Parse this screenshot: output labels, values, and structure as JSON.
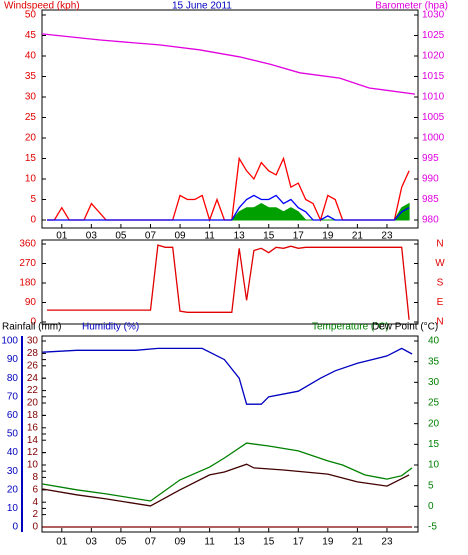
{
  "chart_data": [
    {
      "type": "line",
      "title": "15 June 2011",
      "title_color": "#0000c0",
      "axis_titles": [
        {
          "text": "Windspeed (kph)",
          "color": "#e00000"
        },
        {
          "text": "Barometer (hpa)",
          "color": "#e000e0"
        }
      ],
      "xlim": [
        -0.34,
        25.1
      ],
      "xticks": [
        {
          "value": 1,
          "label": "01"
        },
        {
          "value": 3,
          "label": "03"
        },
        {
          "value": 5,
          "label": "05"
        },
        {
          "value": 7,
          "label": "07"
        },
        {
          "value": 9,
          "label": "09"
        },
        {
          "value": 11,
          "label": "11"
        },
        {
          "value": 13,
          "label": "13"
        },
        {
          "value": 15,
          "label": "15"
        },
        {
          "value": 17,
          "label": "17"
        },
        {
          "value": 19,
          "label": "19"
        },
        {
          "value": 21,
          "label": "21"
        },
        {
          "value": 23,
          "label": "23"
        }
      ],
      "ylim": [
        0,
        50
      ],
      "yticks": [
        0,
        5,
        10,
        15,
        20,
        25,
        30,
        35,
        40,
        45,
        50
      ],
      "ycolor": "#e00000",
      "y2lim": [
        980,
        1030
      ],
      "y2ticks": [
        980,
        985,
        990,
        995,
        1000,
        1005,
        1010,
        1015,
        1020,
        1025,
        1030
      ],
      "y2color": "#e000e0",
      "series": [
        {
          "color": "#00a000",
          "style": "area",
          "axis": "y",
          "x": [
            0,
            0.5,
            1,
            1.5,
            2,
            2.5,
            3,
            3.5,
            4,
            4.5,
            5,
            5.5,
            6,
            6.5,
            7,
            7.5,
            8,
            8.5,
            9,
            9.5,
            10,
            10.5,
            11,
            11.5,
            12,
            12.5,
            13,
            13.5,
            14,
            14.5,
            15,
            15.5,
            16,
            16.5,
            17,
            17.5,
            18,
            18.5,
            19,
            19.5,
            20,
            20.5,
            21,
            21.5,
            22,
            22.5,
            23,
            23.5,
            24,
            24.5
          ],
          "values": [
            0,
            0,
            0,
            0,
            0,
            0,
            0,
            0,
            0,
            0,
            0,
            0,
            0,
            0,
            0,
            0,
            0,
            0,
            0,
            0,
            0,
            0,
            0,
            0,
            0,
            0,
            2,
            3,
            3,
            4,
            3,
            3,
            2,
            3,
            2,
            0,
            0,
            0,
            0,
            0,
            0,
            0,
            0,
            0,
            0,
            0,
            0,
            0,
            3,
            4
          ]
        },
        {
          "color": "#ff0000",
          "style": "line",
          "axis": "y",
          "x": [
            0,
            0.5,
            1,
            1.5,
            2,
            2.5,
            3,
            3.5,
            4,
            4.5,
            5,
            5.5,
            6,
            6.5,
            7,
            7.5,
            8,
            8.5,
            9,
            9.5,
            10,
            10.5,
            11,
            11.5,
            12,
            12.5,
            13,
            13.5,
            14,
            14.5,
            15,
            15.5,
            16,
            16.5,
            17,
            17.5,
            18,
            18.5,
            19,
            19.5,
            20,
            20.5,
            21,
            21.5,
            22,
            22.5,
            23,
            23.5,
            24,
            24.5
          ],
          "values": [
            0,
            0,
            3,
            0,
            0,
            0,
            4,
            2,
            0,
            0,
            0,
            0,
            0,
            0,
            0,
            0,
            0,
            0,
            6,
            5,
            5,
            6,
            0,
            5,
            0,
            0,
            15,
            12,
            10,
            14,
            12,
            11,
            15,
            8,
            9,
            5,
            4,
            0,
            6,
            5,
            0,
            0,
            0,
            0,
            0,
            0,
            0,
            0,
            8,
            12
          ]
        },
        {
          "color": "#0000ff",
          "style": "line",
          "axis": "y",
          "x": [
            0,
            0.5,
            1,
            1.5,
            2,
            2.5,
            3,
            3.5,
            4,
            4.5,
            5,
            5.5,
            6,
            6.5,
            7,
            7.5,
            8,
            8.5,
            9,
            9.5,
            10,
            10.5,
            11,
            11.5,
            12,
            12.5,
            13,
            13.5,
            14,
            14.5,
            15,
            15.5,
            16,
            16.5,
            17,
            17.5,
            18,
            18.5,
            19,
            19.5,
            20,
            20.5,
            21,
            21.5,
            22,
            22.5,
            23,
            23.5,
            24,
            24.5
          ],
          "values": [
            0,
            0,
            0,
            0,
            0,
            0,
            0,
            0,
            0,
            0,
            0,
            0,
            0,
            0,
            0,
            0,
            0,
            0,
            0,
            0,
            0,
            0,
            0,
            0,
            0,
            0,
            3,
            5,
            6,
            5,
            5,
            6,
            4,
            5,
            3,
            2,
            0,
            0,
            1,
            0,
            0,
            0,
            0,
            0,
            0,
            0,
            0,
            0,
            2,
            3
          ]
        },
        {
          "color": "#e000e0",
          "style": "line",
          "axis": "y2",
          "x": [
            -0.34,
            3.6,
            7.6,
            10.3,
            13.0,
            15.1,
            17.1,
            19.8,
            21.8,
            24.9
          ],
          "values": [
            1025.4,
            1023.9,
            1022.7,
            1021.5,
            1019.8,
            1018.0,
            1015.9,
            1014.6,
            1012.2,
            1010.7
          ]
        }
      ]
    },
    {
      "type": "line",
      "xlim": [
        -0.34,
        25.1
      ],
      "ylim": [
        0,
        360
      ],
      "yticks": [
        0,
        90,
        180,
        270,
        360
      ],
      "ycolor": "#e00000",
      "y2lim": [
        0,
        360
      ],
      "y2ticks": [
        {
          "value": 0,
          "label": "N"
        },
        {
          "value": 90,
          "label": "E"
        },
        {
          "value": 180,
          "label": "S"
        },
        {
          "value": 270,
          "label": "W"
        },
        {
          "value": 360,
          "label": "N"
        }
      ],
      "y2color": "#e00000",
      "series": [
        {
          "color": "#e00000",
          "style": "line",
          "axis": "y",
          "x": [
            0,
            0.5,
            1,
            1.5,
            2,
            2.5,
            3,
            3.5,
            4,
            4.5,
            5,
            5.5,
            6,
            6.5,
            7,
            7.5,
            8,
            8.5,
            9,
            9.5,
            10,
            10.5,
            11,
            11.5,
            12,
            12.5,
            13,
            13.5,
            14,
            14.5,
            15,
            15.5,
            16,
            16.5,
            17,
            17.5,
            18,
            18.5,
            19,
            19.5,
            20,
            20.5,
            21,
            21.5,
            22,
            22.5,
            23,
            23.5,
            24,
            24.5
          ],
          "values": [
            55,
            55,
            55,
            55,
            55,
            55,
            55,
            55,
            55,
            55,
            55,
            55,
            55,
            55,
            55,
            355,
            345,
            345,
            50,
            45,
            45,
            45,
            45,
            45,
            45,
            45,
            340,
            100,
            330,
            340,
            320,
            345,
            340,
            350,
            340,
            345,
            345,
            345,
            345,
            345,
            345,
            345,
            345,
            345,
            345,
            345,
            345,
            345,
            345,
            10
          ]
        }
      ]
    },
    {
      "type": "line",
      "axis_titles": [
        {
          "text": "Rainfall (mm)",
          "color": "#000000"
        },
        {
          "text": "Humidity (%)",
          "color": "#0000c0"
        },
        {
          "text": "Temperature (°C)",
          "color": "#008000"
        },
        {
          "text": "Dew Point (°C)",
          "color": "#000000"
        }
      ],
      "xlim": [
        -0.34,
        25.1
      ],
      "xticks": [
        {
          "value": 1,
          "label": "01"
        },
        {
          "value": 3,
          "label": "03"
        },
        {
          "value": 5,
          "label": "05"
        },
        {
          "value": 7,
          "label": "07"
        },
        {
          "value": 9,
          "label": "09"
        },
        {
          "value": 11,
          "label": "11"
        },
        {
          "value": 13,
          "label": "13"
        },
        {
          "value": 15,
          "label": "15"
        },
        {
          "value": 17,
          "label": "17"
        },
        {
          "value": 19,
          "label": "19"
        },
        {
          "value": 21,
          "label": "21"
        },
        {
          "value": 23,
          "label": "23"
        }
      ],
      "ylim": [
        0,
        100
      ],
      "yticks": [
        0,
        10,
        20,
        30,
        40,
        50,
        60,
        70,
        80,
        90,
        100
      ],
      "ycolor": "#0000c0",
      "y3lim": [
        0,
        30
      ],
      "y3ticks": [
        0,
        2,
        4,
        6,
        8,
        10,
        12,
        14,
        16,
        18,
        20,
        22,
        24,
        26,
        28,
        30
      ],
      "y3color": "#800000",
      "y2lim": [
        -5,
        40
      ],
      "y2ticks": [
        -5,
        0,
        5,
        10,
        15,
        20,
        25,
        30,
        35,
        40
      ],
      "y2color": "#008000",
      "series": [
        {
          "color": "#800000",
          "style": "line",
          "axis": "y3",
          "x": [
            -0.3,
            24.7
          ],
          "values": [
            0,
            0
          ]
        },
        {
          "color": "#0000c0",
          "style": "line",
          "axis": "y",
          "x": [
            -0.3,
            2,
            4,
            6,
            7.5,
            9,
            10.5,
            12,
            13,
            13.5,
            14.5,
            15,
            17,
            18.5,
            19.5,
            21,
            23,
            24,
            24.7
          ],
          "values": [
            94,
            95,
            95,
            95,
            96,
            96,
            96,
            90,
            80,
            66,
            66,
            70,
            73,
            80,
            84,
            88,
            92,
            96,
            93
          ]
        },
        {
          "color": "#008000",
          "style": "line",
          "axis": "y2",
          "x": [
            -0.3,
            2,
            4,
            7,
            9,
            11,
            12,
            13.5,
            15,
            17,
            19,
            20,
            21.5,
            23,
            24,
            24.7
          ],
          "values": [
            5.4,
            4,
            3,
            1.3,
            6.4,
            9.5,
            11.7,
            15.3,
            14.6,
            13.4,
            11,
            10,
            7.6,
            6.6,
            7.4,
            9.3
          ]
        },
        {
          "color": "#400000",
          "style": "line",
          "axis": "y2",
          "x": [
            -0.3,
            2,
            4,
            7,
            9,
            11,
            12,
            13.5,
            14,
            16,
            19,
            21,
            23,
            24.5
          ],
          "values": [
            4.2,
            2.8,
            1.8,
            0.1,
            4,
            7.6,
            8.3,
            10.2,
            9.3,
            8.8,
            7.8,
            5.9,
            4.9,
            7.6
          ]
        }
      ]
    }
  ]
}
